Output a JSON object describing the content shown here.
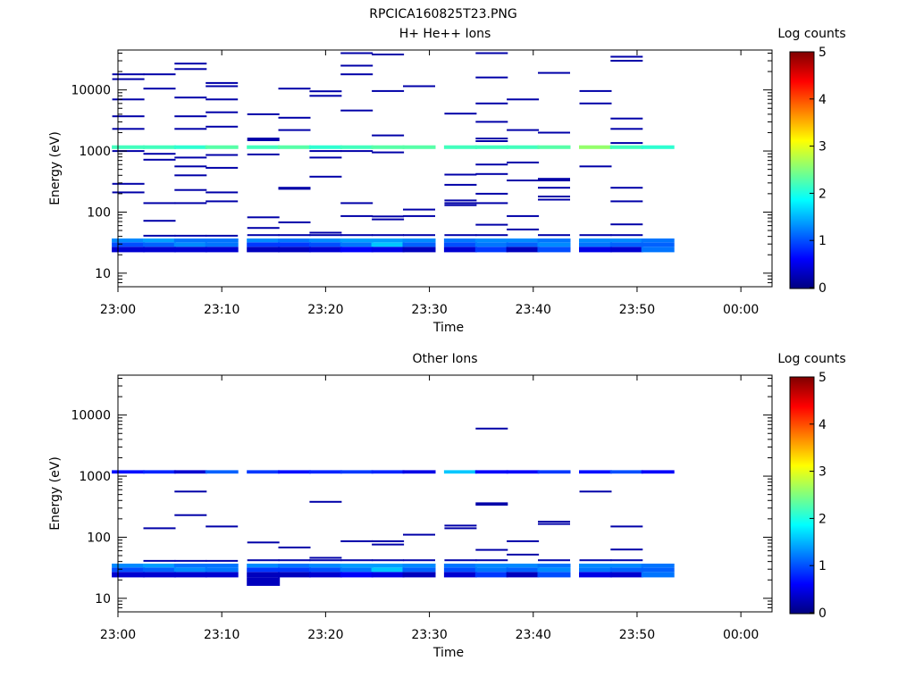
{
  "figure_title": "RPCICA160825T23.PNG",
  "colorbar": {
    "label": "Log counts",
    "min": 0,
    "max": 5,
    "ticks": [
      "0",
      "1",
      "2",
      "3",
      "4",
      "5"
    ],
    "colormap": "jet"
  },
  "time_ticks": [
    "23:00",
    "23:10",
    "23:20",
    "23:30",
    "23:40",
    "23:50",
    "00:00"
  ],
  "chart_data": [
    {
      "type": "heatmap",
      "title": "H+ He++ Ions",
      "xlabel": "Time",
      "ylabel": "Energy (eV)",
      "xlim": [
        "23:00",
        "00:03"
      ],
      "ylim": [
        6,
        45000
      ],
      "yscale": "log",
      "y_ticks": [
        10,
        100,
        1000,
        10000
      ],
      "y_tick_labels": [
        "10",
        "100",
        "1000",
        "10000"
      ],
      "time_columns": [
        "23:01",
        "23:04",
        "23:07",
        "23:10",
        "23:14",
        "23:17",
        "23:20",
        "23:23",
        "23:26",
        "23:29",
        "23:33",
        "23:36",
        "23:39",
        "23:42",
        "23:46",
        "23:49",
        "23:52"
      ],
      "bands": [
        {
          "e_low": 22,
          "e_high": 27,
          "values": [
            0.4,
            0.4,
            0.4,
            0.4,
            0.3,
            0.3,
            0.4,
            0.6,
            0.5,
            0.3,
            0.4,
            0.9,
            0.3,
            1.0,
            0.5,
            0.4,
            1.2
          ]
        },
        {
          "e_low": 27,
          "e_high": 32,
          "values": [
            1.0,
            1.1,
            1.3,
            1.2,
            0.9,
            0.9,
            1.0,
            1.2,
            1.6,
            1.1,
            1.0,
            1.2,
            1.1,
            1.3,
            1.2,
            1.1,
            1.1
          ]
        },
        {
          "e_low": 32,
          "e_high": 37,
          "values": [
            1.3,
            1.4,
            1.2,
            1.2,
            1.3,
            1.2,
            1.3,
            1.4,
            1.4,
            1.3,
            1.2,
            1.3,
            1.3,
            1.2,
            1.3,
            1.3,
            1.2
          ]
        },
        {
          "e_low": 1080,
          "e_high": 1240,
          "values": [
            2.2,
            2.2,
            2.1,
            2.3,
            2.2,
            2.3,
            2.1,
            2.2,
            2.3,
            2.3,
            2.2,
            2.2,
            2.2,
            2.3,
            2.6,
            2.2,
            2.1
          ]
        }
      ],
      "lines": [
        {
          "time": "23:01",
          "energies": [
            18000,
            15000,
            7000,
            3700,
            2300,
            1000,
            290,
            210
          ]
        },
        {
          "time": "23:04",
          "energies": [
            18000,
            10500,
            900,
            720,
            140,
            72,
            41
          ]
        },
        {
          "time": "23:07",
          "energies": [
            27000,
            22000,
            7500,
            3700,
            2300,
            780,
            560,
            400,
            230,
            140,
            41
          ]
        },
        {
          "time": "23:10",
          "energies": [
            13000,
            11500,
            7000,
            4300,
            2500,
            860,
            530,
            210,
            150,
            41
          ]
        },
        {
          "time": "23:14",
          "energies": [
            4000,
            1600,
            1500,
            880,
            82,
            55,
            42
          ]
        },
        {
          "time": "23:17",
          "energies": [
            10500,
            3500,
            2200,
            250,
            240,
            68,
            42
          ]
        },
        {
          "time": "23:20",
          "energies": [
            9500,
            8000,
            1000,
            780,
            380,
            46,
            42
          ]
        },
        {
          "time": "23:23",
          "energies": [
            40000,
            25000,
            18000,
            4600,
            1000,
            140,
            86,
            42
          ]
        },
        {
          "time": "23:26",
          "energies": [
            38000,
            9600,
            1800,
            950,
            85,
            76,
            42
          ]
        },
        {
          "time": "23:29",
          "energies": [
            11500,
            110,
            86,
            42
          ]
        },
        {
          "time": "23:33",
          "energies": [
            4100,
            410,
            280,
            155,
            140,
            130,
            42
          ]
        },
        {
          "time": "23:36",
          "energies": [
            40000,
            16000,
            6000,
            3000,
            1600,
            1450,
            600,
            420,
            200,
            140,
            62,
            42
          ]
        },
        {
          "time": "23:39",
          "energies": [
            7000,
            2200,
            650,
            330,
            86,
            52
          ]
        },
        {
          "time": "23:42",
          "energies": [
            19000,
            2000,
            350,
            330,
            250,
            180,
            160,
            42
          ]
        },
        {
          "time": "23:46",
          "energies": [
            9600,
            6000,
            560,
            42
          ]
        },
        {
          "time": "23:49",
          "energies": [
            35000,
            30000,
            3400,
            2300,
            1350,
            250,
            150,
            63,
            42
          ]
        }
      ]
    },
    {
      "type": "heatmap",
      "title": "Other Ions",
      "xlabel": "Time",
      "ylabel": "Energy (eV)",
      "xlim": [
        "23:00",
        "00:03"
      ],
      "ylim": [
        6,
        45000
      ],
      "yscale": "log",
      "y_ticks": [
        10,
        100,
        1000,
        10000
      ],
      "y_tick_labels": [
        "10",
        "100",
        "1000",
        "10000"
      ],
      "time_columns": [
        "23:01",
        "23:04",
        "23:07",
        "23:10",
        "23:14",
        "23:17",
        "23:20",
        "23:23",
        "23:26",
        "23:29",
        "23:33",
        "23:36",
        "23:39",
        "23:42",
        "23:46",
        "23:49",
        "23:52"
      ],
      "bands": [
        {
          "e_low": 16,
          "e_high": 22,
          "values": [
            0,
            0,
            0,
            0,
            0.3,
            0,
            0,
            0,
            0,
            0,
            0,
            0,
            0,
            0,
            0,
            0,
            0
          ]
        },
        {
          "e_low": 22,
          "e_high": 27,
          "values": [
            0.4,
            0.4,
            0.4,
            0.4,
            0.3,
            0.3,
            0.4,
            0.6,
            0.5,
            0.3,
            0.4,
            0.9,
            0.3,
            1.0,
            0.5,
            0.4,
            1.2
          ]
        },
        {
          "e_low": 27,
          "e_high": 32,
          "values": [
            1.0,
            1.1,
            1.3,
            1.2,
            0.9,
            0.9,
            1.0,
            1.2,
            1.6,
            1.1,
            1.0,
            1.2,
            1.1,
            1.3,
            1.2,
            1.1,
            1.1
          ]
        },
        {
          "e_low": 32,
          "e_high": 37,
          "values": [
            1.3,
            1.4,
            1.2,
            1.2,
            1.3,
            1.2,
            1.3,
            1.4,
            1.4,
            1.3,
            1.2,
            1.3,
            1.3,
            1.2,
            1.3,
            1.3,
            1.2
          ]
        },
        {
          "e_low": 1100,
          "e_high": 1250,
          "values": [
            0.7,
            0.8,
            0.4,
            1.1,
            0.9,
            0.7,
            0.8,
            0.9,
            0.8,
            0.5,
            1.6,
            0.6,
            0.6,
            0.9,
            0.7,
            1.0,
            0.6
          ]
        }
      ],
      "lines": [
        {
          "time": "23:04",
          "energies": [
            140,
            41
          ]
        },
        {
          "time": "23:07",
          "energies": [
            560,
            230,
            41
          ]
        },
        {
          "time": "23:10",
          "energies": [
            150,
            41
          ]
        },
        {
          "time": "23:14",
          "energies": [
            82,
            42
          ]
        },
        {
          "time": "23:17",
          "energies": [
            68,
            42
          ]
        },
        {
          "time": "23:20",
          "energies": [
            380,
            46,
            42
          ]
        },
        {
          "time": "23:23",
          "energies": [
            86,
            42
          ]
        },
        {
          "time": "23:26",
          "energies": [
            86,
            76,
            42
          ]
        },
        {
          "time": "23:29",
          "energies": [
            110,
            42
          ]
        },
        {
          "time": "23:33",
          "energies": [
            155,
            140,
            42
          ]
        },
        {
          "time": "23:36",
          "energies": [
            6000,
            360,
            340,
            62,
            42
          ]
        },
        {
          "time": "23:39",
          "energies": [
            86,
            52
          ]
        },
        {
          "time": "23:42",
          "energies": [
            180,
            165,
            42
          ]
        },
        {
          "time": "23:46",
          "energies": [
            560,
            42
          ]
        },
        {
          "time": "23:49",
          "energies": [
            150,
            63,
            42
          ]
        }
      ]
    }
  ]
}
